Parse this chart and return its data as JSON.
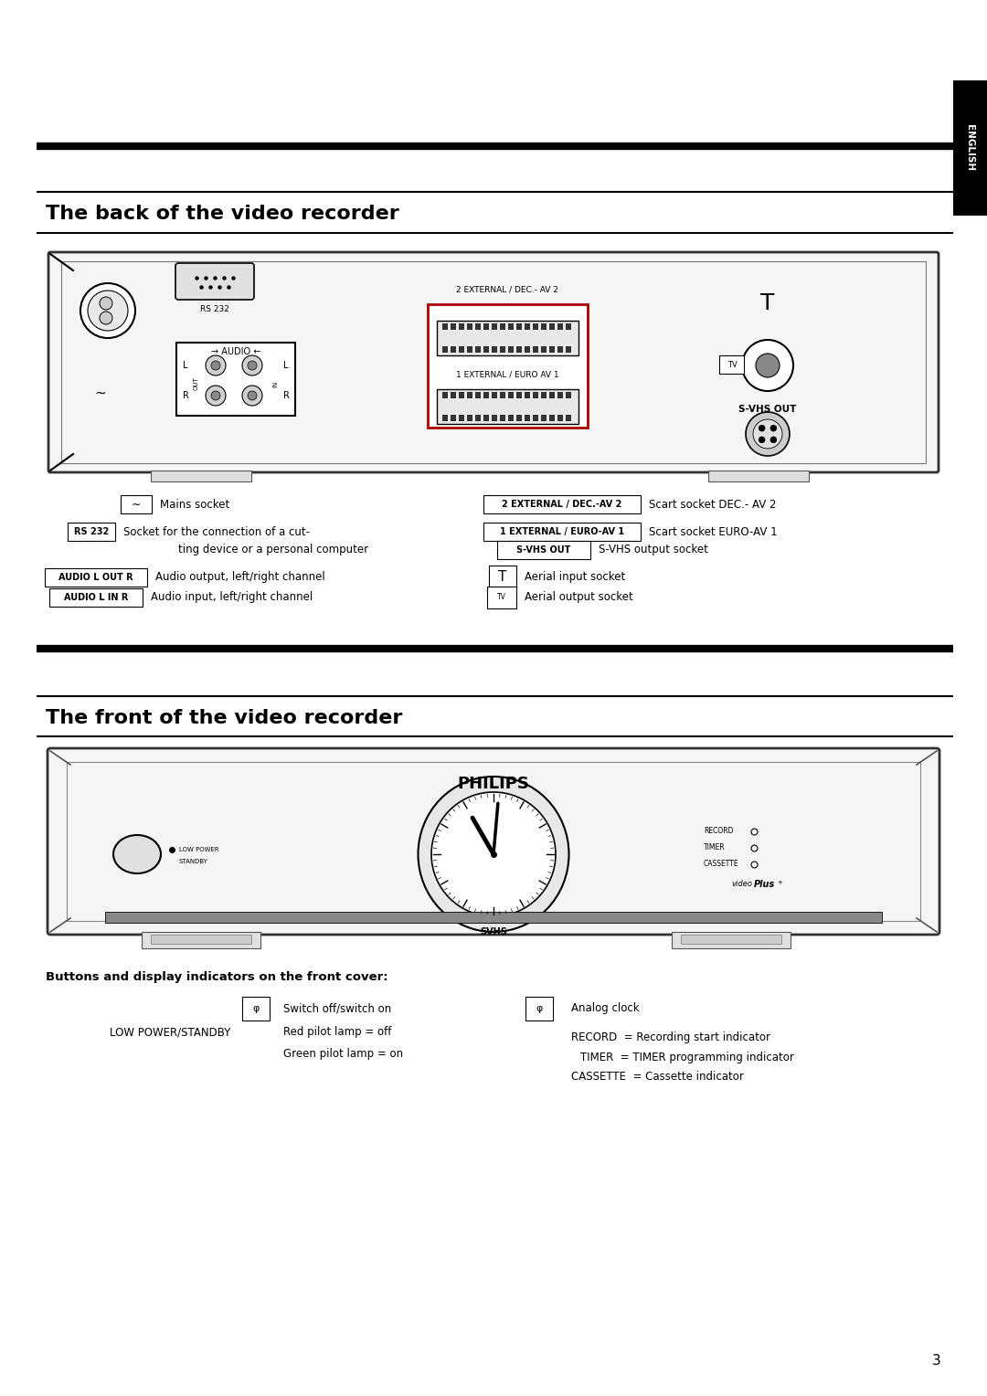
{
  "bg_color": "#ffffff",
  "page_number": "3",
  "figsize": [
    10.8,
    15.28
  ],
  "dpi": 100,
  "english_tab_text": "ENGLISH",
  "section1_title": "The back of the video recorder",
  "section2_title": "The front of the video recorder",
  "back_caption_mains": "Mains socket",
  "back_caption_rs232": "Socket for the connection of a cut-",
  "back_caption_rs232b": "ting device or a personal computer",
  "back_caption_audio_out": "Audio output, left/right channel",
  "back_caption_audio_in": "Audio input, left/right channel",
  "back_caption_ext2": "Scart socket DEC.- AV 2",
  "back_caption_ext1": "Scart socket EURO-AV 1",
  "back_caption_svhs": "S-VHS output socket",
  "back_caption_aerial_in": "Aerial input socket",
  "back_caption_aerial_out": "Aerial output socket",
  "front_caption_header": "Buttons and display indicators on the front cover:",
  "front_caption_switch": "Switch off/switch on",
  "front_caption_lowpower": "LOW POWER/STANDBY",
  "front_caption_red": "Red pilot lamp = off",
  "front_caption_green": "Green pilot lamp = on",
  "front_caption_clock": "Analog clock",
  "front_caption_record": "RECORD  = Recording start indicator",
  "front_caption_timer": "TIMER  = TIMER programming indicator",
  "front_caption_cassette": "CASSETTE  = Cassette indicator"
}
